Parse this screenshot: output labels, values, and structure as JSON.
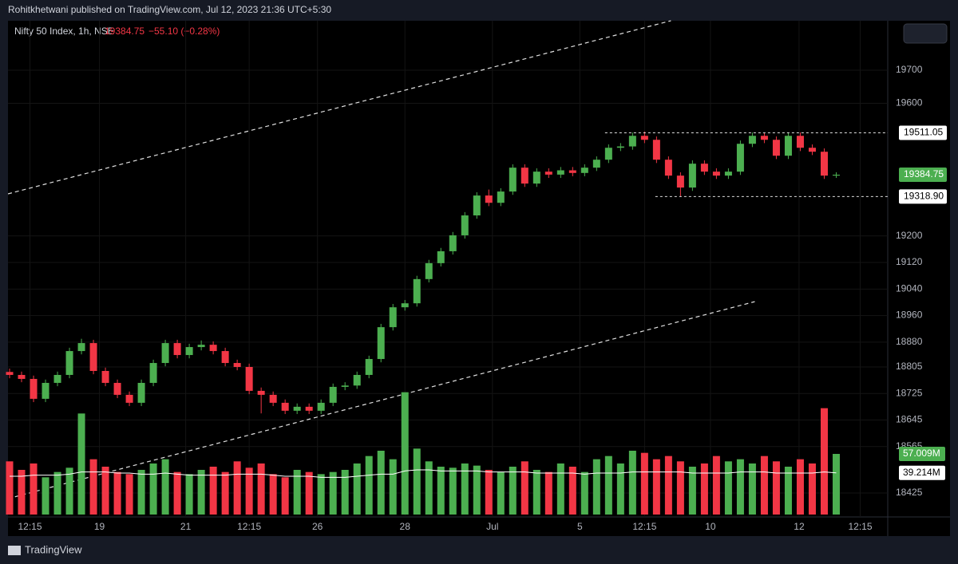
{
  "chart_data": {
    "type": "candlestick",
    "header": "Rohitkhetwani published on TradingView.com, Jul 12, 2023 21:36 UTC+5:30",
    "symbol": "Nifty 50 Index, 1h, NSE",
    "legend_price": "19384.75",
    "change": "−55.10 (−0.28%)",
    "footer": "TradingView",
    "up_color": "#4caf50",
    "down_color": "#f23645",
    "candles": [
      [
        18790,
        18800,
        18771,
        18781
      ],
      [
        18781,
        18791,
        18759,
        18769
      ],
      [
        18769,
        18779,
        18699,
        18709
      ],
      [
        18709,
        18767,
        18699,
        18757
      ],
      [
        18757,
        18791,
        18747,
        18781
      ],
      [
        18781,
        18863,
        18771,
        18853
      ],
      [
        18853,
        18890,
        18843,
        18877
      ],
      [
        18877,
        18887,
        18783,
        18793
      ],
      [
        18793,
        18803,
        18747,
        18757
      ],
      [
        18757,
        18767,
        18711,
        18721
      ],
      [
        18721,
        18731,
        18687,
        18697
      ],
      [
        18697,
        18767,
        18687,
        18757
      ],
      [
        18757,
        18827,
        18747,
        18817
      ],
      [
        18817,
        18887,
        18807,
        18877
      ],
      [
        18877,
        18887,
        18831,
        18841
      ],
      [
        18841,
        18875,
        18831,
        18865
      ],
      [
        18865,
        18885,
        18855,
        18872
      ],
      [
        18872,
        18882,
        18843,
        18853
      ],
      [
        18853,
        18863,
        18807,
        18817
      ],
      [
        18817,
        18827,
        18795,
        18805
      ],
      [
        18805,
        18815,
        18723,
        18733
      ],
      [
        18733,
        18743,
        18665,
        18721
      ],
      [
        18721,
        18731,
        18687,
        18697
      ],
      [
        18697,
        18707,
        18663,
        18673
      ],
      [
        18673,
        18695,
        18663,
        18685
      ],
      [
        18685,
        18695,
        18663,
        18673
      ],
      [
        18673,
        18707,
        18663,
        18697
      ],
      [
        18697,
        18755,
        18687,
        18745
      ],
      [
        18745,
        18759,
        18735,
        18749
      ],
      [
        18749,
        18791,
        18739,
        18781
      ],
      [
        18781,
        18839,
        18771,
        18829
      ],
      [
        18829,
        18935,
        18819,
        18925
      ],
      [
        18925,
        18995,
        18915,
        18985
      ],
      [
        18985,
        19007,
        18975,
        18997
      ],
      [
        18997,
        19080,
        18987,
        19070
      ],
      [
        19070,
        19128,
        19060,
        19118
      ],
      [
        19118,
        19164,
        19108,
        19154
      ],
      [
        19154,
        19212,
        19144,
        19202
      ],
      [
        19202,
        19272,
        19192,
        19262
      ],
      [
        19262,
        19332,
        19252,
        19322
      ],
      [
        19322,
        19340,
        19290,
        19300
      ],
      [
        19300,
        19344,
        19290,
        19334
      ],
      [
        19334,
        19416,
        19324,
        19406
      ],
      [
        19406,
        19416,
        19348,
        19358
      ],
      [
        19358,
        19404,
        19348,
        19394
      ],
      [
        19394,
        19404,
        19375,
        19385
      ],
      [
        19385,
        19408,
        19375,
        19398
      ],
      [
        19398,
        19408,
        19380,
        19390
      ],
      [
        19390,
        19416,
        19380,
        19406
      ],
      [
        19406,
        19440,
        19396,
        19430
      ],
      [
        19430,
        19476,
        19420,
        19466
      ],
      [
        19466,
        19480,
        19456,
        19470
      ],
      [
        19470,
        19512,
        19460,
        19502
      ],
      [
        19502,
        19515,
        19480,
        19490
      ],
      [
        19490,
        19500,
        19420,
        19430
      ],
      [
        19430,
        19440,
        19372,
        19382
      ],
      [
        19382,
        19392,
        19320,
        19346
      ],
      [
        19346,
        19428,
        19336,
        19418
      ],
      [
        19418,
        19428,
        19384,
        19394
      ],
      [
        19394,
        19404,
        19372,
        19382
      ],
      [
        19382,
        19404,
        19372,
        19394
      ],
      [
        19394,
        19488,
        19384,
        19478
      ],
      [
        19478,
        19512,
        19468,
        19502
      ],
      [
        19502,
        19510,
        19480,
        19490
      ],
      [
        19490,
        19500,
        19432,
        19442
      ],
      [
        19442,
        19512,
        19432,
        19502
      ],
      [
        19502,
        19512,
        19456,
        19466
      ],
      [
        19466,
        19476,
        19444,
        19454
      ],
      [
        19454,
        19464,
        19372,
        19382
      ],
      [
        19382,
        19392,
        19375,
        19384.75
      ]
    ],
    "volume": [
      50,
      42,
      48,
      35,
      40,
      44,
      95,
      52,
      45,
      40,
      38,
      42,
      48,
      52,
      40,
      38,
      42,
      45,
      40,
      50,
      44,
      48,
      38,
      35,
      42,
      40,
      38,
      40,
      42,
      48,
      55,
      60,
      52,
      115,
      62,
      50,
      45,
      44,
      48,
      46,
      42,
      40,
      45,
      50,
      42,
      40,
      48,
      45,
      40,
      52,
      55,
      48,
      60,
      58,
      52,
      55,
      50,
      45,
      48,
      55,
      50,
      52,
      48,
      55,
      50,
      45,
      52,
      48,
      100,
      57.009
    ],
    "volume_last_label": "57.009M",
    "volume_ma": [
      36,
      36,
      37,
      37,
      37,
      38,
      40,
      40,
      40,
      39,
      39,
      38,
      38,
      39,
      38,
      37,
      37,
      37,
      37,
      38,
      38,
      38,
      37,
      36,
      36,
      36,
      35,
      35,
      35,
      36,
      37,
      38,
      38,
      41,
      42,
      42,
      41,
      41,
      41,
      41,
      40,
      40,
      40,
      40,
      39,
      39,
      39,
      39,
      38,
      39,
      39,
      39,
      40,
      40,
      40,
      40,
      40,
      39,
      39,
      39,
      39,
      40,
      40,
      40,
      39,
      39,
      39,
      39,
      40,
      39.214
    ],
    "volume_ma_last_label": "39.214M",
    "vlim": [
      0,
      150
    ],
    "ylim": [
      18360,
      19849
    ],
    "yticks": [
      19700,
      19600,
      19200,
      19120,
      19040,
      18960,
      18880,
      18805,
      18725,
      18645,
      18565,
      18425
    ],
    "xlim": [
      -0.8,
      73.3
    ],
    "xticks": [
      {
        "value": 1.7,
        "label": "12:15"
      },
      {
        "value": 7.5,
        "label": "19"
      },
      {
        "value": 14.7,
        "label": "21"
      },
      {
        "value": 20,
        "label": "12:15"
      },
      {
        "value": 25.7,
        "label": "26"
      },
      {
        "value": 33,
        "label": "28"
      },
      {
        "value": 40.3,
        "label": "Jul"
      },
      {
        "value": 47.6,
        "label": "5"
      },
      {
        "value": 53,
        "label": "12:15"
      },
      {
        "value": 58.5,
        "label": "10"
      },
      {
        "value": 65.9,
        "label": "12"
      },
      {
        "value": 71,
        "label": "12:15"
      }
    ],
    "levels": [
      {
        "value": 19511.05,
        "label": "19511.05",
        "start": 49.7
      },
      {
        "value": 19318.9,
        "label": "19318.90",
        "start": 53.9
      }
    ],
    "trendlines": [
      {
        "from": [
          -0.13,
          19327
        ],
        "to": [
          55.2,
          19849
        ]
      },
      {
        "from": [
          -0.13,
          18408
        ],
        "to": [
          62.2,
          19002
        ]
      }
    ]
  }
}
